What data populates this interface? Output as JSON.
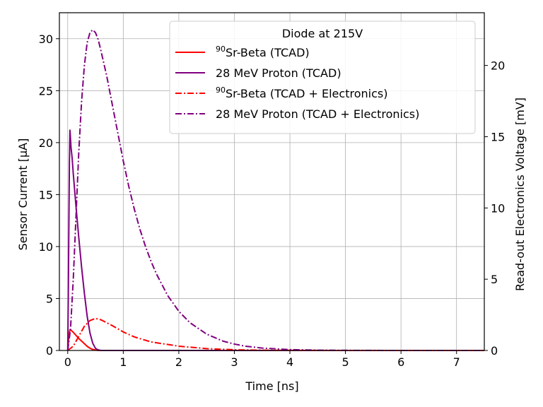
{
  "chart_data": {
    "type": "line",
    "title": "",
    "xlabel": "Time [ns]",
    "ylabel_left": "Sensor Current [μA]",
    "ylabel_right": "Read-out Electronics Voltage [mV]",
    "xlim": [
      -0.15,
      7.5
    ],
    "ylim_left": [
      0,
      32.5
    ],
    "ylim_right": [
      0,
      23.7
    ],
    "x_ticks": [
      0,
      1,
      2,
      3,
      4,
      5,
      6,
      7
    ],
    "y_ticks_left": [
      0,
      5,
      10,
      15,
      20,
      25,
      30
    ],
    "y_ticks_right": [
      0,
      5,
      10,
      15,
      20
    ],
    "grid": true,
    "legend": {
      "title": "Diode at 215V",
      "placement": "top-right",
      "entries": [
        {
          "sup": "90",
          "text": "Sr-Beta (TCAD)",
          "color": "#ff0000",
          "style": "solid"
        },
        {
          "sup": "",
          "text": "28 MeV Proton (TCAD)",
          "color": "#800080",
          "style": "solid"
        },
        {
          "sup": "90",
          "text": "Sr-Beta (TCAD + Electronics)",
          "color": "#ff0000",
          "style": "dashdot"
        },
        {
          "sup": "",
          "text": "28 MeV Proton (TCAD + Electronics)",
          "color": "#800080",
          "style": "dashdot"
        }
      ]
    },
    "series": [
      {
        "name": "90Sr-Beta (TCAD)",
        "axis": "left",
        "color": "#ff0000",
        "style": "solid",
        "x": [
          0.0,
          0.02,
          0.04,
          0.06,
          0.1,
          0.15,
          0.2,
          0.25,
          0.3,
          0.35,
          0.4,
          0.45,
          0.5,
          0.55,
          0.6,
          7.5
        ],
        "y": [
          0.0,
          1.4,
          2.0,
          1.95,
          1.75,
          1.45,
          1.15,
          0.9,
          0.65,
          0.4,
          0.22,
          0.1,
          0.04,
          0.01,
          0.0,
          0.0
        ]
      },
      {
        "name": "28 MeV Proton (TCAD)",
        "axis": "left",
        "color": "#800080",
        "style": "solid",
        "x": [
          0.0,
          0.01,
          0.03,
          0.04,
          0.06,
          0.08,
          0.1,
          0.15,
          0.2,
          0.25,
          0.3,
          0.35,
          0.4,
          0.45,
          0.5,
          0.55,
          0.6,
          7.5
        ],
        "y": [
          0.0,
          5.0,
          18.0,
          21.2,
          19.5,
          18.5,
          17.0,
          13.8,
          10.8,
          8.0,
          5.5,
          3.3,
          1.7,
          0.7,
          0.2,
          0.05,
          0.0,
          0.0
        ]
      },
      {
        "name": "90Sr-Beta (TCAD + Electronics)",
        "axis": "right",
        "color": "#ff0000",
        "style": "dashdot",
        "x": [
          0.0,
          0.1,
          0.2,
          0.3,
          0.4,
          0.5,
          0.6,
          0.8,
          1.0,
          1.2,
          1.5,
          2.0,
          2.5,
          3.0,
          3.5,
          4.0,
          5.0,
          7.5
        ],
        "y": [
          0.0,
          0.3,
          1.0,
          1.7,
          2.1,
          2.25,
          2.15,
          1.75,
          1.3,
          0.95,
          0.6,
          0.3,
          0.13,
          0.05,
          0.02,
          0.01,
          0.0,
          0.0
        ]
      },
      {
        "name": "28 MeV Proton (TCAD + Electronics)",
        "axis": "right",
        "color": "#800080",
        "style": "dashdot",
        "x": [
          0.0,
          0.05,
          0.1,
          0.15,
          0.2,
          0.25,
          0.3,
          0.35,
          0.4,
          0.45,
          0.5,
          0.55,
          0.6,
          0.7,
          0.8,
          0.9,
          1.0,
          1.1,
          1.2,
          1.3,
          1.4,
          1.5,
          1.6,
          1.8,
          2.0,
          2.2,
          2.5,
          2.8,
          3.0,
          3.2,
          3.5,
          4.0,
          4.5,
          5.0,
          6.0,
          7.5
        ],
        "y": [
          0.0,
          1.5,
          5.0,
          9.5,
          14.0,
          17.5,
          20.0,
          21.6,
          22.3,
          22.5,
          22.3,
          21.8,
          21.0,
          19.3,
          17.3,
          15.3,
          13.3,
          11.5,
          9.9,
          8.5,
          7.3,
          6.25,
          5.35,
          3.85,
          2.75,
          1.95,
          1.15,
          0.65,
          0.45,
          0.3,
          0.17,
          0.06,
          0.02,
          0.01,
          0.0,
          0.0
        ]
      }
    ]
  }
}
